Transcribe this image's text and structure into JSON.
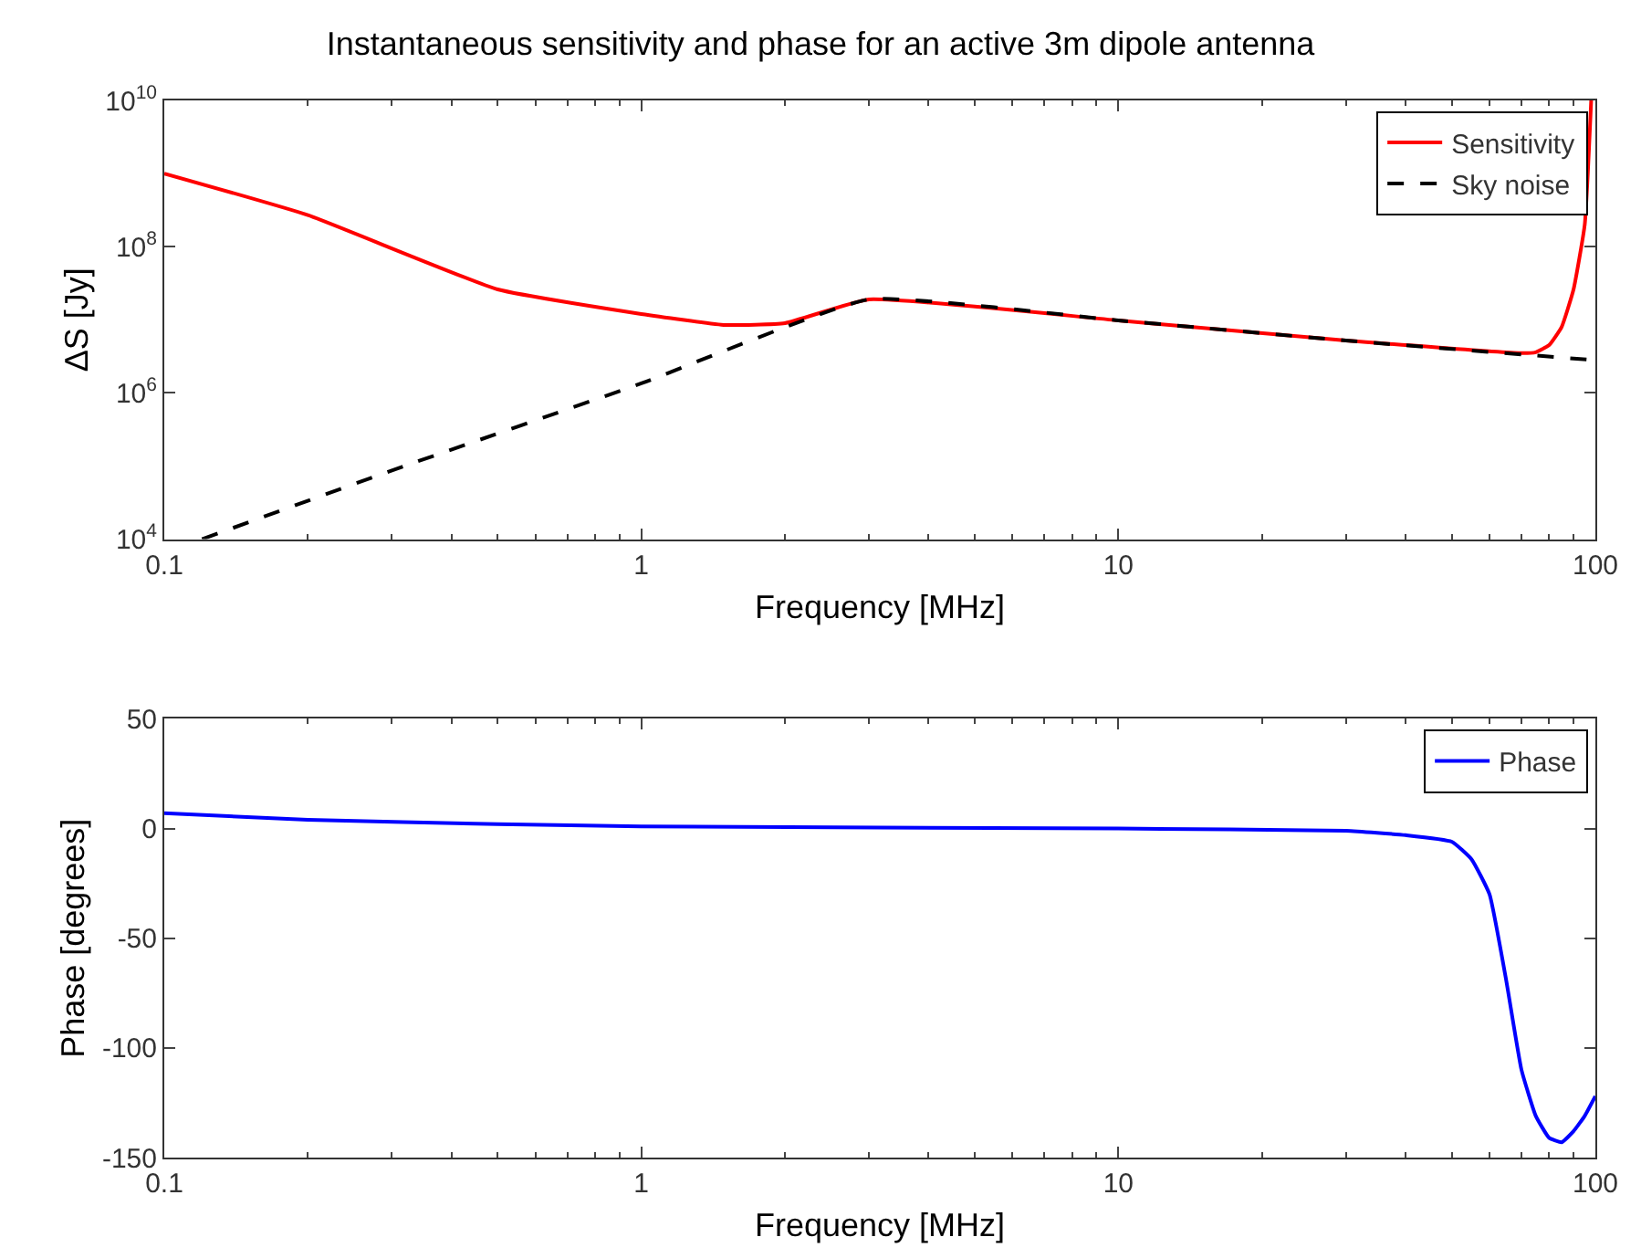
{
  "chart_data": [
    {
      "type": "line",
      "title": "Instantaneous sensitivity and phase for an active 3m dipole antenna",
      "xlabel": "Frequency [MHz]",
      "ylabel": "ΔS [Jy]",
      "log": "xy",
      "legend": "top right",
      "xlim": [
        0.1,
        100
      ],
      "xticks": [
        0.1,
        1,
        10,
        100
      ],
      "ylim": [
        10000,
        10000000000
      ],
      "yticks": [
        {
          "value": 10000,
          "label": "10$^{4}$"
        },
        {
          "value": 1000000,
          "label": "10$^{6}$"
        },
        {
          "value": 100000000,
          "label": "10$^{8}$"
        },
        {
          "value": 10000000000,
          "label": "10$^{10}$"
        }
      ],
      "series": [
        {
          "name": "Sensitivity",
          "color": "#ff0000",
          "line_style": "solid",
          "x": [
            0.1,
            0.2,
            0.5,
            1,
            1.5,
            2,
            3,
            10,
            30,
            70,
            75,
            80,
            85,
            90,
            95,
            98
          ],
          "values": [
            1000000000.0,
            270000000.0,
            26000000.0,
            12000000.0,
            8500000.0,
            9000000.0,
            19000000.0,
            9800000.0,
            5200000.0,
            3500000.0,
            3600000.0,
            4500000.0,
            8000000.0,
            26000000.0,
            200000000.0,
            10000000000.0
          ]
        },
        {
          "name": "Sky noise",
          "color": "#000000",
          "line_style": "dashed",
          "x": [
            0.12,
            0.3,
            1,
            3,
            10,
            30,
            100
          ],
          "values": [
            10000.0,
            87000.0,
            1350000.0,
            19000000.0,
            9800000.0,
            5200000.0,
            2800000.0
          ]
        }
      ]
    },
    {
      "type": "line",
      "xlabel": "Frequency [MHz]",
      "ylabel": "Phase [degrees]",
      "log": "x",
      "legend": "top right",
      "xlim": [
        0.1,
        100
      ],
      "xticks": [
        0.1,
        1,
        10,
        100
      ],
      "ylim": [
        -150,
        50
      ],
      "yticks": [
        -150,
        -100,
        -50,
        0,
        50
      ],
      "series": [
        {
          "name": "Phase",
          "color": "#0000ff",
          "line_style": "solid",
          "x": [
            0.1,
            0.2,
            0.5,
            1,
            10,
            30,
            40,
            50,
            55,
            60,
            65,
            70,
            75,
            80,
            85,
            90,
            95,
            100
          ],
          "values": [
            7,
            4,
            2,
            1,
            0,
            -1,
            -3,
            -6,
            -14,
            -30,
            -69,
            -110,
            -131,
            -141,
            -143,
            -138,
            -131,
            -122
          ]
        }
      ]
    }
  ]
}
